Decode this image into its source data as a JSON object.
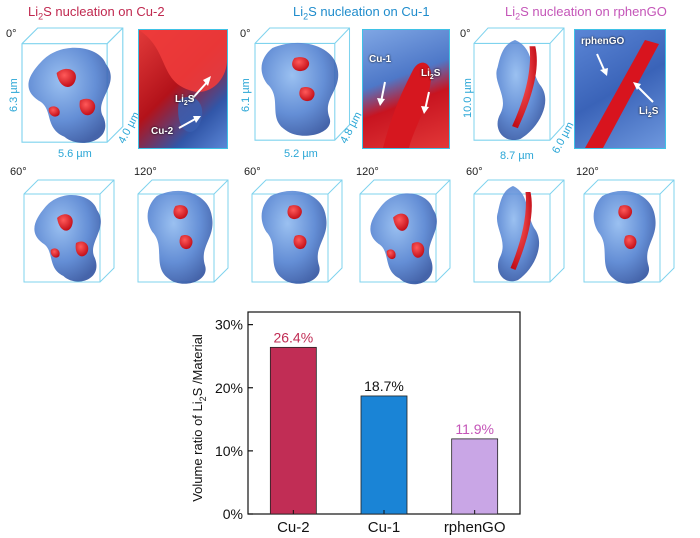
{
  "panels": [
    {
      "title_pre": "Li",
      "title_sub": "2",
      "title_post": "S nucleation on Cu-2",
      "title_color": "#c0284f",
      "angle0": "0°",
      "dim_h": "6.3 µm",
      "dim_d": "4.0 µm",
      "dim_w": "5.6 µm",
      "zoom_label_1": "Li",
      "zoom_label_1_sub": "2",
      "zoom_label_1_post": "S",
      "zoom_label_2": "Cu-2",
      "angle60": "60°",
      "angle120": "120°"
    },
    {
      "title_pre": "Li",
      "title_sub": "2",
      "title_post": "S nucleation on Cu-1",
      "title_color": "#1f8ccc",
      "angle0": "0°",
      "dim_h": "6.1 µm",
      "dim_d": "4.8 µm",
      "dim_w": "5.2 µm",
      "zoom_label_1": "Cu-1",
      "zoom_label_2": "Li",
      "zoom_label_2_sub": "2",
      "zoom_label_2_post": "S",
      "angle60": "60°",
      "angle120": "120°"
    },
    {
      "title_pre": "Li",
      "title_sub": "2",
      "title_post": "S nucleation on rphenGO",
      "title_color": "#c455b8",
      "angle0": "0°",
      "dim_h": "10.0 µm",
      "dim_d": "6.0 µm",
      "dim_w": "8.7 µm",
      "zoom_label_1": "rphenGO",
      "zoom_label_2": "Li",
      "zoom_label_2_sub": "2",
      "zoom_label_2_post": "S",
      "angle60": "60°",
      "angle120": "120°"
    }
  ],
  "chart_data": {
    "type": "bar",
    "categories": [
      "Cu-2",
      "Cu-1",
      "rphenGO"
    ],
    "values": [
      26.4,
      18.7,
      11.9
    ],
    "value_labels": [
      "26.4%",
      "18.7%",
      "11.9%"
    ],
    "colors": [
      "#c12d55",
      "#1a84d6",
      "#c9a6e6"
    ],
    "label_colors": [
      "#c12d55",
      "#111111",
      "#c455b8"
    ],
    "ylabel_pre": "Volume ratio of Li",
    "ylabel_sub": "2",
    "ylabel_post": "S /Material",
    "yticks": [
      0,
      10,
      20,
      30
    ],
    "ytick_labels": [
      "0%",
      "10%",
      "20%",
      "30%"
    ],
    "ylim": [
      0,
      32
    ]
  }
}
